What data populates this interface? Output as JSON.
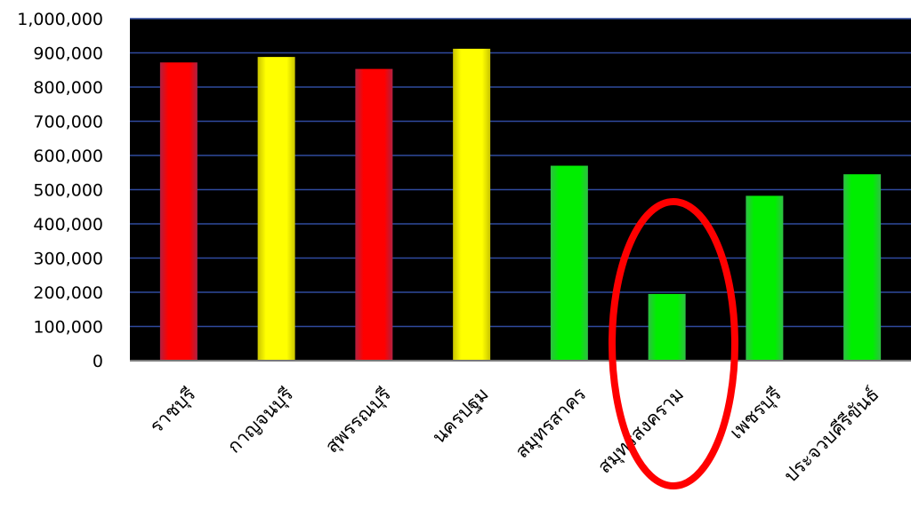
{
  "chart_data": {
    "type": "bar",
    "categories": [
      "ราชบุรี",
      "กาญจนบุรี",
      "สุพรรณบุรี",
      "นครปฐม",
      "สมุทรสาคร",
      "สมุทรสงคราม",
      "เพชรบุรี",
      "ประจวบคีรีขันธ์"
    ],
    "values": [
      872000,
      888000,
      853000,
      912000,
      570000,
      195000,
      482000,
      545000
    ],
    "bar_colors": [
      "#ff0000",
      "#ffff00",
      "#ff0000",
      "#ffff00",
      "#00ee00",
      "#00ee00",
      "#00ee00",
      "#00ee00"
    ],
    "ylim": [
      0,
      1000000
    ],
    "yticks": [
      "0",
      "100,000",
      "200,000",
      "300,000",
      "400,000",
      "500,000",
      "600,000",
      "700,000",
      "800,000",
      "900,000",
      "1,000,000"
    ],
    "plot_background": "#000000",
    "gridline_color": "#2f4a9e",
    "grid": true,
    "highlight": {
      "category": "สมุทรสงคราม",
      "shape": "ellipse",
      "color": "#ff0000"
    }
  }
}
